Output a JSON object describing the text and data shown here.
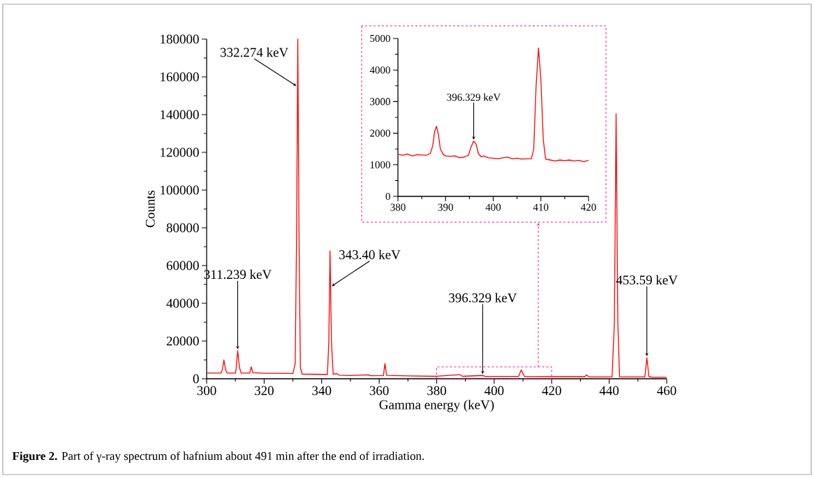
{
  "chart_data": [
    {
      "type": "line",
      "xlabel": "Gamma energy (keV)",
      "ylabel": "Counts",
      "color": "#ff0000",
      "x": [
        300,
        305,
        305.5,
        306,
        306.6,
        307.2,
        310,
        310.3,
        310.8,
        311.4,
        312,
        315,
        315.5,
        316.1,
        320,
        325,
        330,
        330.8,
        331.3,
        331.7,
        332.1,
        332.6,
        333.2,
        340,
        342,
        342.5,
        342.9,
        343.4,
        344,
        345.5,
        346,
        350,
        356.3,
        357,
        361.5,
        362,
        362.6,
        370,
        380,
        388,
        389,
        396,
        397,
        408.5,
        409.4,
        410.5,
        420,
        431.5,
        432.1,
        433,
        441,
        441.8,
        442.4,
        443,
        443.6,
        452.4,
        453.1,
        453.8,
        455,
        460
      ],
      "values": [
        3000,
        3000,
        5000,
        10000,
        4500,
        3000,
        3000,
        6000,
        14900,
        6000,
        3000,
        3000,
        6300,
        3200,
        2900,
        2900,
        2800,
        8000,
        80000,
        180000,
        80000,
        6000,
        2500,
        2300,
        2300,
        20000,
        67800,
        20000,
        2500,
        2600,
        1900,
        1700,
        2100,
        1600,
        1700,
        8100,
        1800,
        1500,
        1300,
        2200,
        1300,
        1750,
        1250,
        1300,
        4700,
        1200,
        1100,
        1100,
        2000,
        1000,
        1000,
        30000,
        140500,
        30000,
        1000,
        1000,
        11200,
        1200,
        800,
        800
      ],
      "xlim": [
        300,
        460
      ],
      "xticks": [
        300,
        320,
        340,
        360,
        380,
        400,
        420,
        440,
        460
      ],
      "ylim": [
        0,
        180000
      ],
      "yticks": [
        0,
        20000,
        40000,
        60000,
        80000,
        100000,
        120000,
        140000,
        160000,
        180000
      ],
      "annotations": [
        {
          "text": "332.274 keV",
          "x": 331.6,
          "y": 154800
        },
        {
          "text": "311.239 keV",
          "x": 310.8,
          "y": 14900
        },
        {
          "text": "343.40 keV",
          "x": 343.1,
          "y": 48700
        },
        {
          "text": "396.329 keV",
          "x": 396,
          "y": 1750
        },
        {
          "text": "453.59 keV",
          "x": 453.1,
          "y": 11200
        },
        "**Figure 2.** Part of γ-ray spectrum of hafnium about 491 min after the end of irradiation."
      ]
    },
    {
      "type": "line",
      "color": "#ff0000",
      "x": [
        380,
        381,
        382,
        383,
        384,
        385,
        386,
        386.8,
        387.3,
        387.7,
        388.1,
        388.5,
        388.9,
        389.5,
        390,
        391,
        392,
        393,
        394,
        394.8,
        395.3,
        395.9,
        396.4,
        396.9,
        397.5,
        398,
        399,
        400,
        401,
        402,
        403,
        404,
        405,
        406,
        407,
        408,
        408.5,
        409,
        409.5,
        410,
        410.5,
        411,
        412,
        413,
        414,
        415,
        416,
        417,
        418,
        419,
        420
      ],
      "values": [
        1330,
        1300,
        1340,
        1280,
        1320,
        1310,
        1300,
        1360,
        1600,
        2050,
        2220,
        1950,
        1500,
        1330,
        1280,
        1270,
        1280,
        1220,
        1250,
        1300,
        1550,
        1750,
        1650,
        1350,
        1250,
        1280,
        1220,
        1210,
        1190,
        1220,
        1240,
        1190,
        1210,
        1180,
        1190,
        1190,
        1500,
        3500,
        4700,
        3700,
        1800,
        1180,
        1150,
        1120,
        1150,
        1130,
        1150,
        1120,
        1140,
        1100,
        1140
      ],
      "xlim": [
        380,
        420
      ],
      "xticks": [
        380,
        390,
        400,
        410,
        420
      ],
      "ylim": [
        0,
        5000
      ],
      "yticks": [
        0,
        1000,
        2000,
        3000,
        4000,
        5000
      ],
      "annotations": [
        {
          "text": "396.329 keV",
          "x": 395.9,
          "y": 1750
        }
      ]
    }
  ]
}
